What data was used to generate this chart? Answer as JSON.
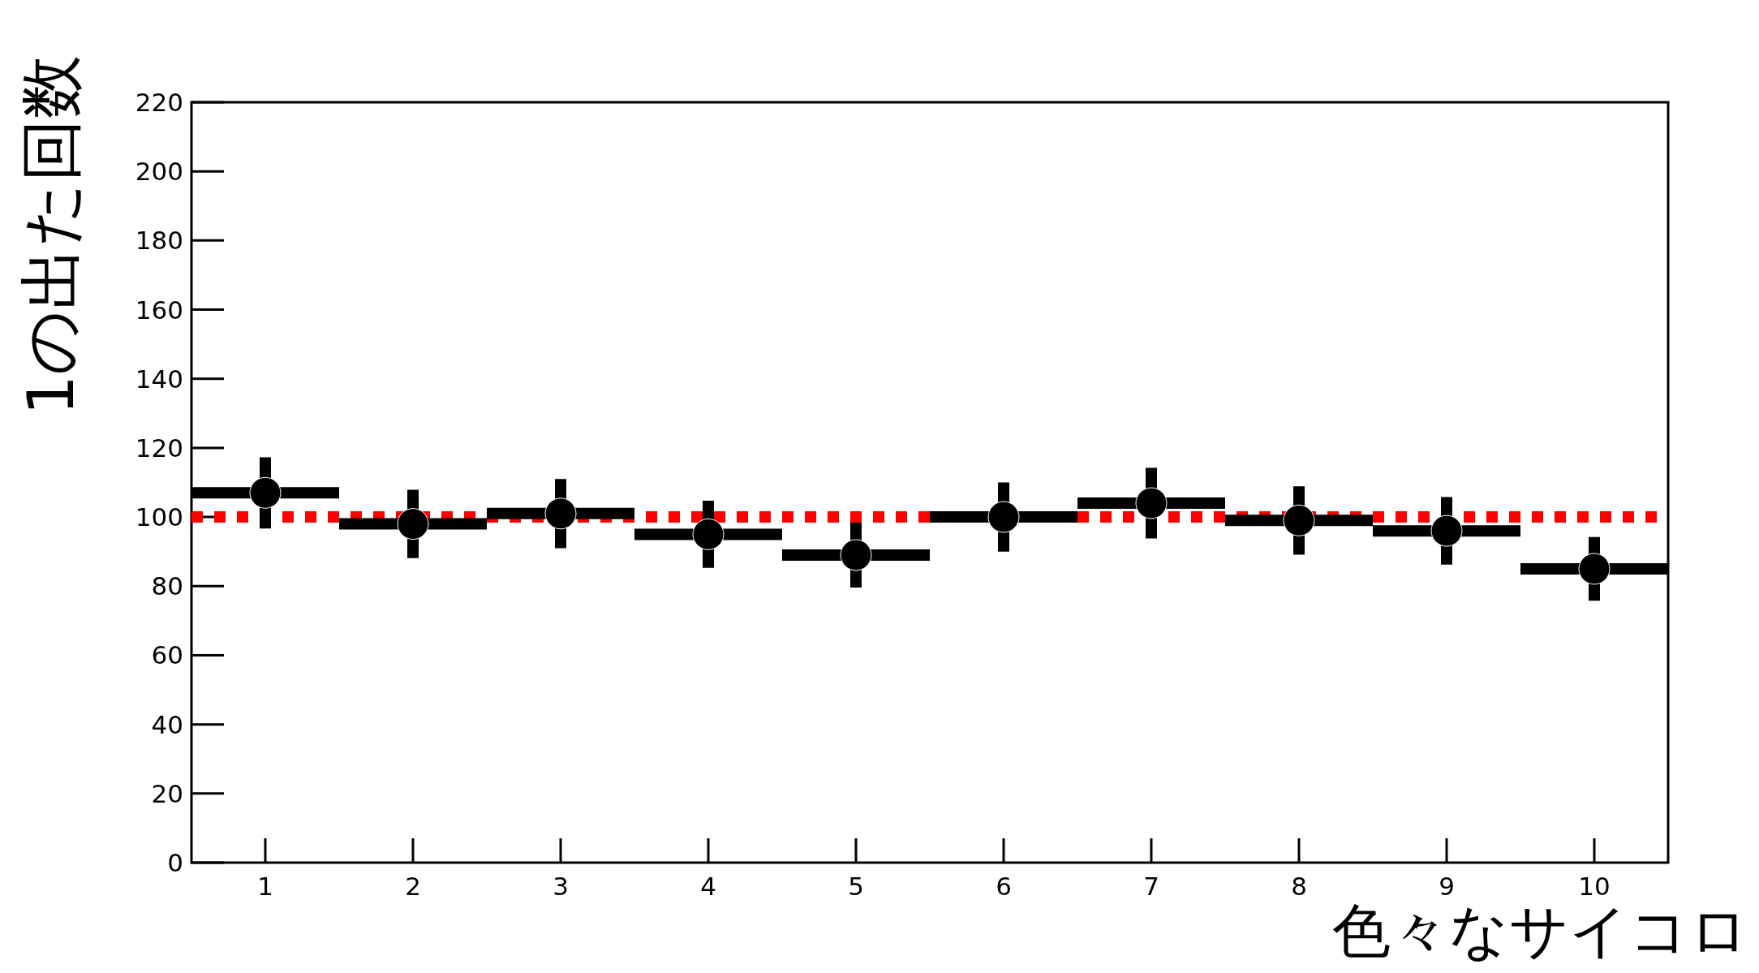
{
  "chart_data": {
    "type": "scatter",
    "xlabel": "色々なサイコロ",
    "ylabel": "1の出た回数",
    "x": [
      1,
      2,
      3,
      4,
      5,
      6,
      7,
      8,
      9,
      10
    ],
    "series": [
      {
        "color": "#000000",
        "values": [
          107,
          98,
          101,
          95,
          89,
          100,
          104,
          99,
          96,
          85
        ],
        "errors": [
          10.3,
          9.9,
          10.0,
          9.7,
          9.4,
          10.0,
          10.2,
          9.9,
          9.8,
          9.2
        ],
        "xerrors": [
          0.5,
          0.5,
          0.5,
          0.5,
          0.5,
          0.5,
          0.5,
          0.5,
          0.5,
          0.5
        ]
      }
    ],
    "marker": "circle",
    "xlim": [
      0.5,
      10.5
    ],
    "xticks": [
      1,
      2,
      3,
      4,
      5,
      6,
      7,
      8,
      9,
      10
    ],
    "ylim": [
      0,
      220
    ],
    "yticks": [
      0,
      20,
      40,
      60,
      80,
      100,
      120,
      140,
      160,
      180,
      200,
      220
    ],
    "grid": false,
    "ref_lines": [
      {
        "axis": "y",
        "value": 100,
        "color": "#ff0000",
        "line_style": "dotted"
      }
    ]
  }
}
